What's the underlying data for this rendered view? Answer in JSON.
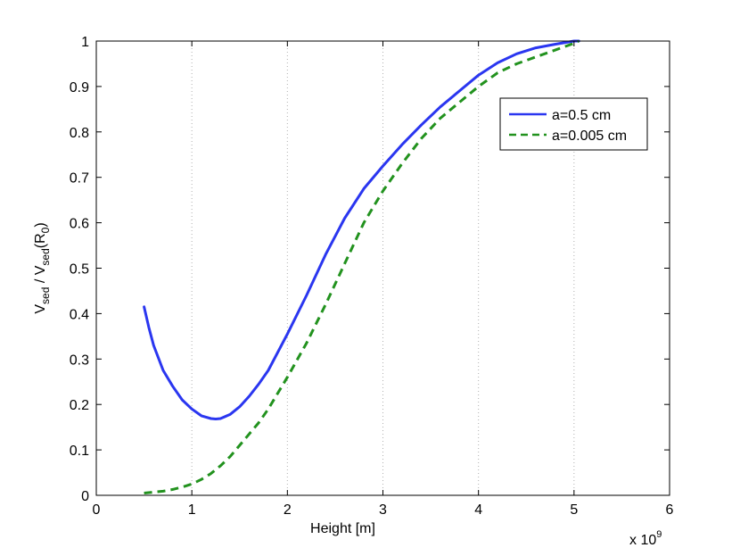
{
  "chart_data": {
    "type": "line",
    "title": "",
    "xlabel": "Height [m]",
    "ylabel_parts": {
      "main": "V",
      "sub1": "sed",
      "slash": " / V",
      "sub2": "sed",
      "paren_open": "(R",
      "sub3": "0",
      "paren_close": ")"
    },
    "x_multiplier_text": "x 10",
    "x_multiplier_exp": "9",
    "xlim": [
      0,
      6
    ],
    "ylim": [
      0,
      1
    ],
    "x_ticks": [
      "0",
      "1",
      "2",
      "3",
      "4",
      "5",
      "6"
    ],
    "y_ticks": [
      "0",
      "0.1",
      "0.2",
      "0.3",
      "0.4",
      "0.5",
      "0.6",
      "0.7",
      "0.8",
      "0.9",
      "1"
    ],
    "grid": "vertical-dotted",
    "legend_position": "top-right",
    "series": [
      {
        "name": "a=0.5 cm",
        "color": "#2a36f0",
        "style": "solid",
        "x": [
          0.5,
          0.55,
          0.6,
          0.7,
          0.8,
          0.9,
          1.0,
          1.1,
          1.2,
          1.25,
          1.3,
          1.4,
          1.5,
          1.6,
          1.7,
          1.8,
          2.0,
          2.2,
          2.4,
          2.6,
          2.8,
          3.0,
          3.2,
          3.4,
          3.6,
          3.8,
          4.0,
          4.2,
          4.4,
          4.6,
          4.8,
          5.0,
          5.05
        ],
        "y": [
          0.415,
          0.37,
          0.33,
          0.275,
          0.24,
          0.21,
          0.19,
          0.175,
          0.169,
          0.168,
          0.169,
          0.178,
          0.195,
          0.218,
          0.245,
          0.275,
          0.355,
          0.44,
          0.53,
          0.61,
          0.675,
          0.725,
          0.772,
          0.815,
          0.855,
          0.89,
          0.925,
          0.952,
          0.972,
          0.985,
          0.993,
          1.0,
          1.0
        ]
      },
      {
        "name": "a=0.005 cm",
        "color": "#22921e",
        "style": "dashed",
        "x": [
          0.5,
          0.6,
          0.7,
          0.8,
          0.9,
          1.0,
          1.1,
          1.2,
          1.3,
          1.4,
          1.5,
          1.6,
          1.7,
          1.8,
          2.0,
          2.2,
          2.4,
          2.6,
          2.8,
          3.0,
          3.2,
          3.4,
          3.6,
          3.8,
          4.0,
          4.2,
          4.4,
          4.6,
          4.8,
          5.0,
          5.05
        ],
        "y": [
          0.005,
          0.007,
          0.009,
          0.013,
          0.018,
          0.025,
          0.035,
          0.048,
          0.065,
          0.085,
          0.11,
          0.135,
          0.16,
          0.19,
          0.26,
          0.335,
          0.42,
          0.51,
          0.6,
          0.67,
          0.73,
          0.785,
          0.83,
          0.865,
          0.9,
          0.93,
          0.95,
          0.965,
          0.98,
          0.995,
          1.0
        ]
      }
    ]
  }
}
